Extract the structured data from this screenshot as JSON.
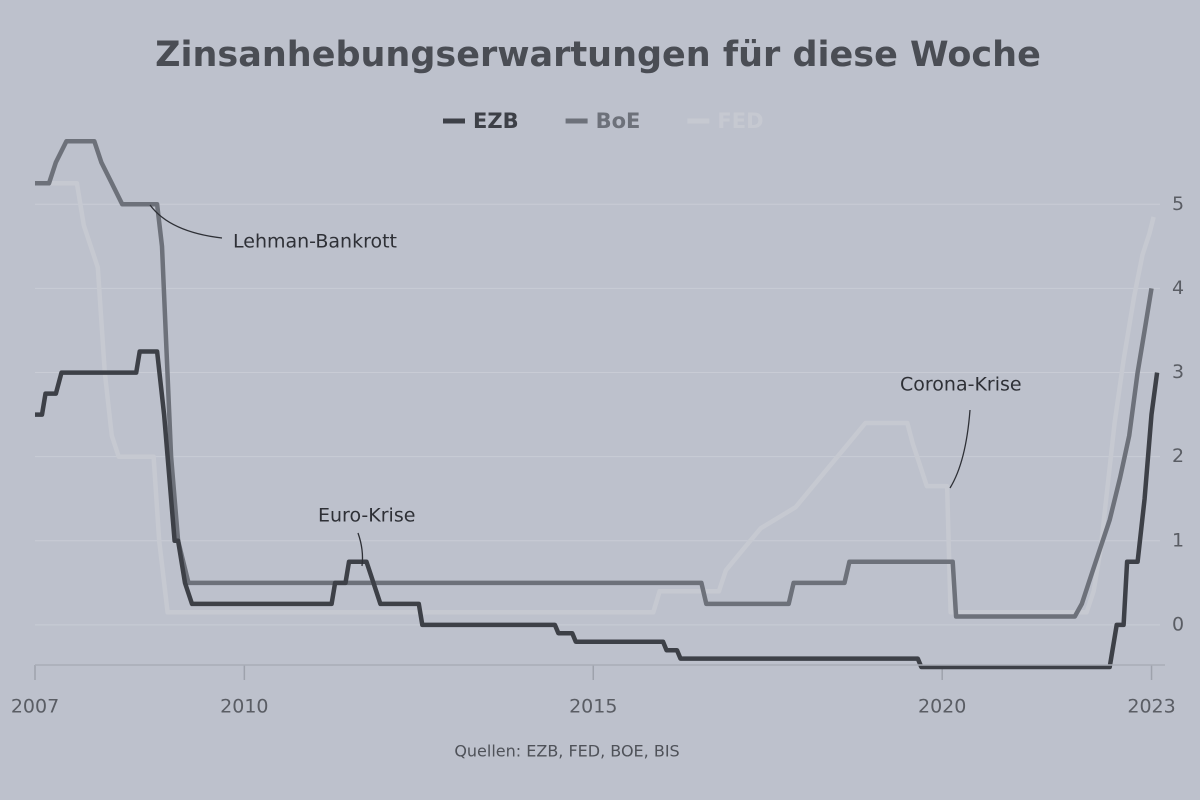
{
  "chart_data": {
    "type": "line",
    "title": "Zinsanhebungserwartungen für diese Woche",
    "source": "Quellen: EZB, FED, BOE, BIS",
    "xlim": [
      2007,
      2023.2
    ],
    "xticks": [
      2007,
      2010,
      2015,
      2020,
      2023
    ],
    "ylim": [
      -0.5,
      5.8
    ],
    "yticks": [
      0,
      1,
      2,
      3,
      4,
      5
    ],
    "grid": true,
    "legend": "top",
    "annotations": [
      {
        "text": "Lehman-Bankrott",
        "x": 2008.75,
        "y": 5.0
      },
      {
        "text": "Euro-Krise",
        "x": 2011.75,
        "y": 0.7
      },
      {
        "text": "Corona-Krise",
        "x": 2020.15,
        "y": 1.65
      }
    ],
    "series": [
      {
        "name": "FED",
        "color": "#c6c9d1",
        "x": [
          2007.0,
          2007.6,
          2007.7,
          2007.8,
          2007.9,
          2008.0,
          2008.1,
          2008.2,
          2008.7,
          2008.78,
          2008.9,
          2015.86,
          2015.95,
          2016.8,
          2016.9,
          2017.15,
          2017.4,
          2017.9,
          2018.15,
          2018.4,
          2018.65,
          2018.9,
          2019.5,
          2019.58,
          2019.68,
          2019.78,
          2020.07,
          2020.12,
          2022.07,
          2022.17,
          2022.27,
          2022.37,
          2022.47,
          2022.6,
          2022.75,
          2022.87,
          2022.97,
          2023.03
        ],
        "values": [
          5.25,
          5.25,
          4.75,
          4.5,
          4.25,
          3.0,
          2.25,
          2.0,
          2.0,
          1.0,
          0.15,
          0.15,
          0.4,
          0.4,
          0.65,
          0.9,
          1.15,
          1.4,
          1.65,
          1.9,
          2.15,
          2.4,
          2.4,
          2.15,
          1.9,
          1.65,
          1.65,
          0.15,
          0.15,
          0.4,
          0.9,
          1.65,
          2.4,
          3.15,
          3.9,
          4.4,
          4.65,
          4.85
        ]
      },
      {
        "name": "BoE",
        "color": "#6d717a",
        "x": [
          2007.0,
          2007.2,
          2007.3,
          2007.45,
          2007.85,
          2007.95,
          2008.1,
          2008.25,
          2008.75,
          2008.82,
          2008.95,
          2009.05,
          2009.2,
          2016.55,
          2016.62,
          2017.8,
          2017.87,
          2018.6,
          2018.67,
          2020.15,
          2020.2,
          2021.9,
          2022.0,
          2022.1,
          2022.2,
          2022.3,
          2022.4,
          2022.55,
          2022.68,
          2022.8,
          2022.9,
          2023.0
        ],
        "values": [
          5.25,
          5.25,
          5.5,
          5.75,
          5.75,
          5.5,
          5.25,
          5.0,
          5.0,
          4.5,
          2.0,
          1.0,
          0.5,
          0.5,
          0.25,
          0.25,
          0.5,
          0.5,
          0.75,
          0.75,
          0.1,
          0.1,
          0.25,
          0.5,
          0.75,
          1.0,
          1.25,
          1.75,
          2.25,
          3.0,
          3.5,
          4.0
        ]
      },
      {
        "name": "EZB",
        "color": "#3d4047",
        "x": [
          2007.0,
          2007.1,
          2007.15,
          2007.3,
          2007.38,
          2008.45,
          2008.5,
          2008.75,
          2008.85,
          2008.95,
          2009.0,
          2009.05,
          2009.15,
          2009.25,
          2011.25,
          2011.3,
          2011.45,
          2011.5,
          2011.75,
          2011.85,
          2011.95,
          2012.5,
          2012.55,
          2014.45,
          2014.5,
          2014.7,
          2014.75,
          2016.0,
          2016.05,
          2016.2,
          2016.25,
          2019.65,
          2019.7,
          2022.4,
          2022.5,
          2022.6,
          2022.65,
          2022.8,
          2022.9,
          2023.0,
          2023.08
        ],
        "values": [
          2.5,
          2.5,
          2.75,
          2.75,
          3.0,
          3.0,
          3.25,
          3.25,
          2.5,
          1.5,
          1.0,
          1.0,
          0.5,
          0.25,
          0.25,
          0.5,
          0.5,
          0.75,
          0.75,
          0.5,
          0.25,
          0.25,
          0.0,
          0.0,
          -0.1,
          -0.1,
          -0.2,
          -0.2,
          -0.3,
          -0.3,
          -0.4,
          -0.4,
          -0.5,
          -0.5,
          0.0,
          0.0,
          0.75,
          0.75,
          1.5,
          2.5,
          3.0
        ]
      }
    ]
  }
}
